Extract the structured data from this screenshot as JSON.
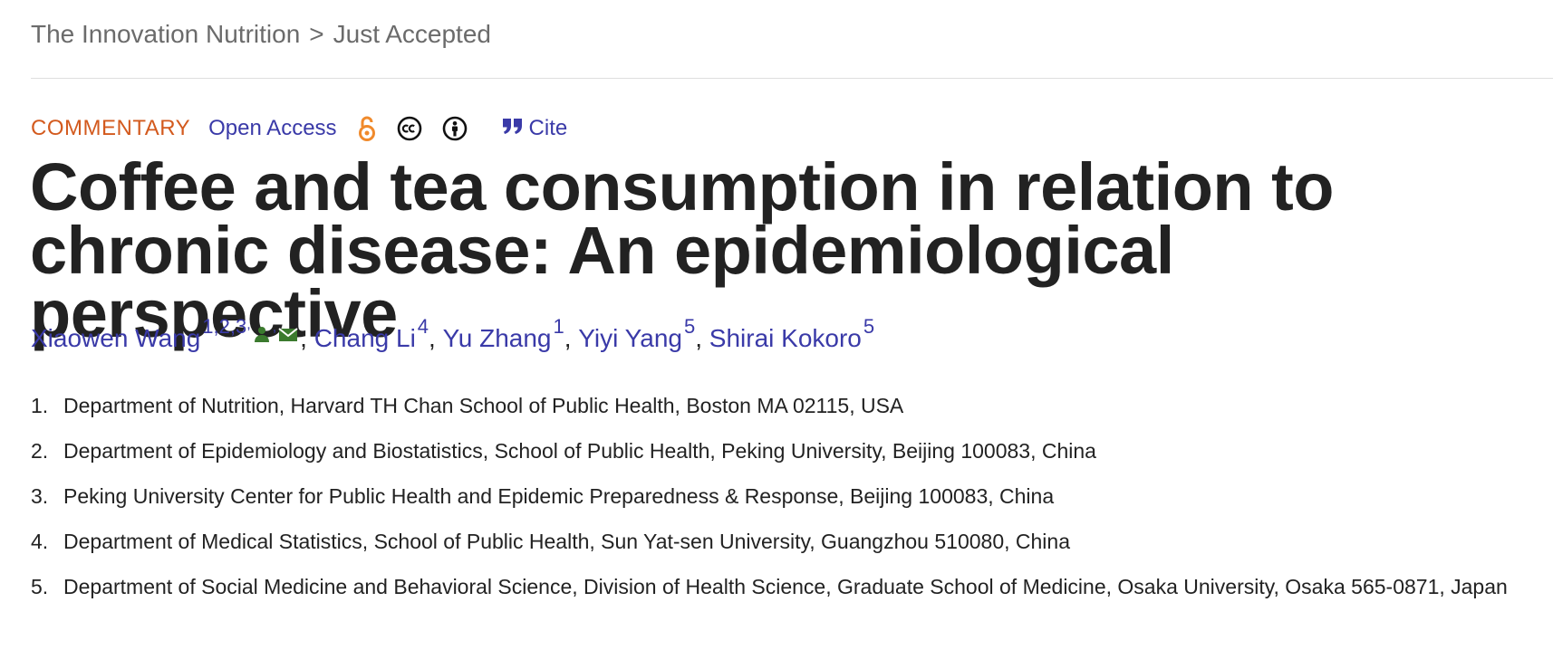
{
  "breadcrumb": {
    "journal": "The Innovation Nutrition",
    "separator": ">",
    "section": "Just Accepted"
  },
  "meta": {
    "type_label": "COMMENTARY",
    "open_access_label": "Open Access",
    "cite_label": "Cite"
  },
  "colors": {
    "link": "#3a3aa8",
    "type_label": "#d35a1e",
    "open_access_icon": "#f08a2c",
    "author_icons": "#3b7a2e"
  },
  "article": {
    "title": "Coffee and tea consumption in relation to chronic disease: An epidemiological perspective"
  },
  "authors": [
    {
      "name": "Xiaowen Wang",
      "aff": "1,2,3",
      "corresponding": true
    },
    {
      "name": "Chang Li",
      "aff": "4"
    },
    {
      "name": "Yu Zhang",
      "aff": "1"
    },
    {
      "name": "Yiyi Yang",
      "aff": "5"
    },
    {
      "name": "Shirai Kokoro",
      "aff": "5"
    }
  ],
  "affiliations": [
    {
      "num": "1.",
      "text": "Department of Nutrition, Harvard TH Chan School of Public Health, Boston MA 02115, USA"
    },
    {
      "num": "2.",
      "text": "Department of Epidemiology and Biostatistics, School of Public Health, Peking University, Beijing 100083, China"
    },
    {
      "num": "3.",
      "text": "Peking University Center for Public Health and Epidemic Preparedness & Response, Beijing 100083, China"
    },
    {
      "num": "4.",
      "text": "Department of Medical Statistics, School of Public Health, Sun Yat-sen University, Guangzhou 510080, China"
    },
    {
      "num": "5.",
      "text": "Department of Social Medicine and Behavioral Science, Division of Health Science, Graduate School of Medicine, Osaka University, Osaka 565-0871, Japan"
    }
  ],
  "icons": {
    "open_access": "open-access-lock-icon",
    "cc": "creative-commons-icon",
    "by": "attribution-icon",
    "cite": "quote-icon",
    "author_profile": "person-icon",
    "author_email": "envelope-icon"
  }
}
